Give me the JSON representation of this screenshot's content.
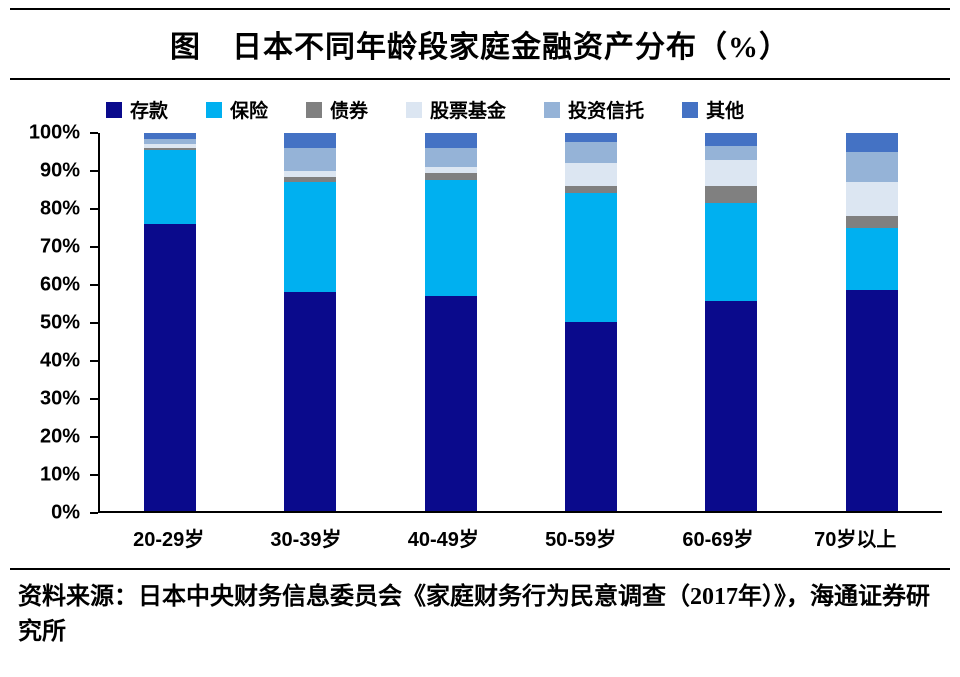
{
  "title": "图　日本不同年龄段家庭金融资产分布（%）",
  "source": "资料来源：日本中央财务信息委员会《家庭财务行为民意调查（2017年）》，海通证券研究所",
  "chart_data": {
    "type": "bar",
    "stacked": true,
    "title": "日本不同年龄段家庭金融资产分布（%）",
    "xlabel": "",
    "ylabel": "",
    "ylim": [
      0,
      100
    ],
    "grid": false,
    "legend_position": "top",
    "y_ticks": [
      "100%",
      "90%",
      "80%",
      "70%",
      "60%",
      "50%",
      "40%",
      "30%",
      "20%",
      "10%",
      "0%"
    ],
    "categories": [
      "20-29岁",
      "30-39岁",
      "40-49岁",
      "50-59岁",
      "60-69岁",
      "70岁以上"
    ],
    "series": [
      {
        "name": "存款",
        "color": "#0a0a8c",
        "values": [
          76,
          58,
          57,
          50,
          55.5,
          58.5
        ]
      },
      {
        "name": "保险",
        "color": "#00b0f0",
        "values": [
          19.5,
          29,
          30.5,
          34,
          26,
          16.5
        ]
      },
      {
        "name": "债券",
        "color": "#808080",
        "values": [
          0.5,
          1.5,
          2,
          2,
          4.5,
          3
        ]
      },
      {
        "name": "股票基金",
        "color": "#dce6f2",
        "values": [
          1,
          1.5,
          1.5,
          6,
          7,
          9
        ]
      },
      {
        "name": "投资信托",
        "color": "#95b3d7",
        "values": [
          1.5,
          6,
          5,
          5.5,
          3.5,
          8
        ]
      },
      {
        "name": "其他",
        "color": "#4472c4",
        "values": [
          1.5,
          4,
          4,
          2.5,
          3.5,
          5
        ]
      }
    ]
  }
}
